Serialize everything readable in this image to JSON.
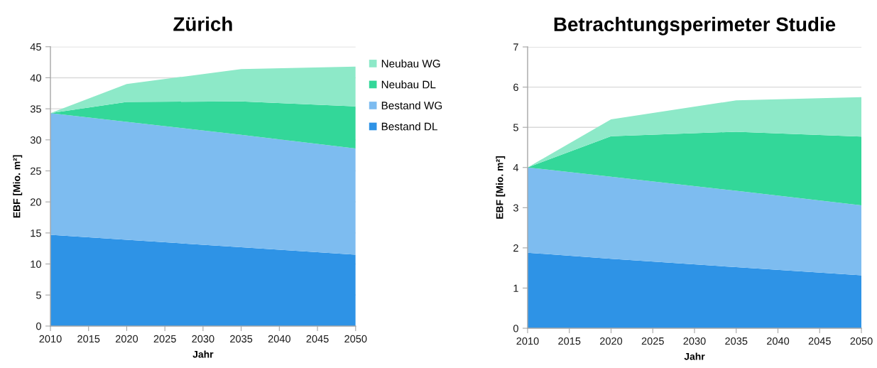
{
  "chart_data": [
    {
      "type": "area",
      "title": "Zürich",
      "xlabel": "Jahr",
      "ylabel": "EBF [Mio. m²]",
      "stacked": true,
      "x": [
        2010,
        2020,
        2035,
        2050
      ],
      "series": [
        {
          "name": "Bestand DL",
          "color": "#2e93e6",
          "values": [
            14.7,
            13.9,
            12.7,
            11.5
          ]
        },
        {
          "name": "Bestand WG",
          "color": "#7dbcf0",
          "values": [
            19.6,
            19.0,
            18.1,
            17.1
          ]
        },
        {
          "name": "Neubau DL",
          "color": "#33d799",
          "values": [
            0,
            3.2,
            5.4,
            6.8
          ]
        },
        {
          "name": "Neubau WG",
          "color": "#8de9c8",
          "values": [
            0,
            2.9,
            5.2,
            6.4
          ]
        }
      ],
      "xlim": [
        2010,
        2050
      ],
      "xticks": [
        2010,
        2015,
        2020,
        2025,
        2030,
        2035,
        2040,
        2045,
        2050
      ],
      "ylim": [
        0,
        45
      ],
      "yticks": [
        0,
        5,
        10,
        15,
        20,
        25,
        30,
        35,
        40,
        45
      ],
      "grid": "y",
      "legend": "right"
    },
    {
      "type": "area",
      "title": "Betrachtungsperimeter Studie",
      "xlabel": "Jahr",
      "ylabel": "EBF [Mio. m²]",
      "stacked": true,
      "x": [
        2010,
        2020,
        2035,
        2050
      ],
      "series": [
        {
          "color": "#2e93e6",
          "values": [
            1.88,
            1.73,
            1.52,
            1.32
          ]
        },
        {
          "color": "#7dbcf0",
          "values": [
            2.12,
            2.04,
            1.9,
            1.74
          ]
        },
        {
          "color": "#33d799",
          "values": [
            0,
            1.01,
            1.47,
            1.71
          ]
        },
        {
          "color": "#8de9c8",
          "values": [
            0,
            0.42,
            0.78,
            0.98
          ]
        }
      ],
      "xlim": [
        2010,
        2050
      ],
      "xticks": [
        2010,
        2015,
        2020,
        2025,
        2030,
        2035,
        2040,
        2045,
        2050
      ],
      "ylim": [
        0,
        7
      ],
      "yticks": [
        0,
        1,
        2,
        3,
        4,
        5,
        6,
        7
      ],
      "grid": "y"
    }
  ]
}
